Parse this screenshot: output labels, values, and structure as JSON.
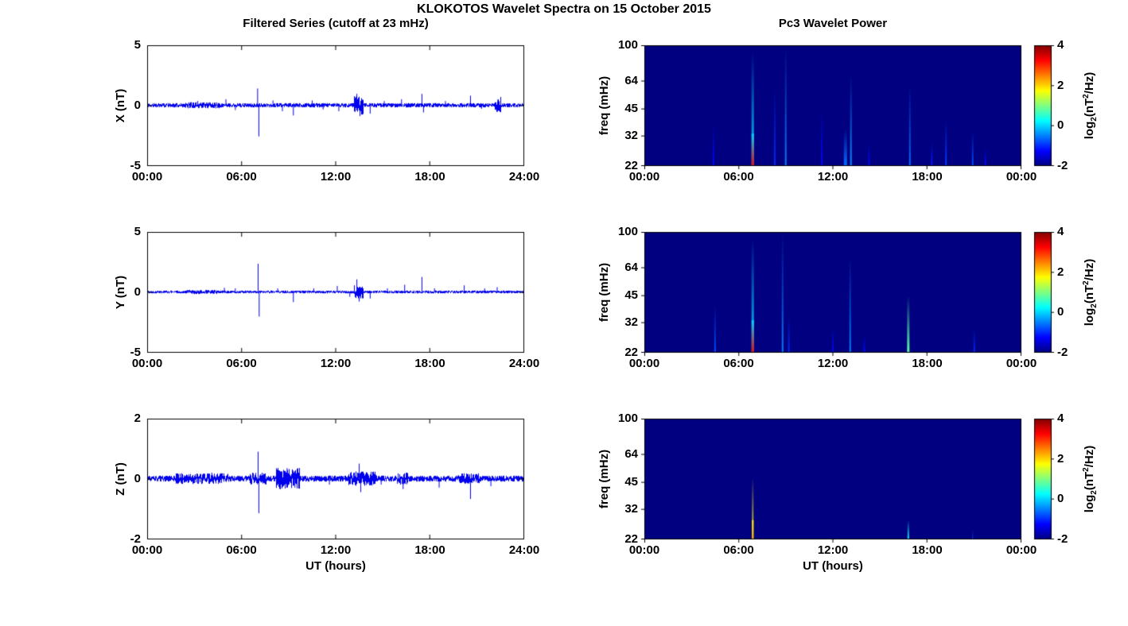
{
  "figure": {
    "title": "KLOKOTOS Wavelet Spectra on 15 October 2015",
    "left_title": "Filtered Series (cutoff at 23 mHz)",
    "right_title": "Pc3 Wavelet Power",
    "xlabel": "UT (hours)",
    "colorbar_label": {
      "prefix": "log",
      "sub": "2",
      "mid": "(nT",
      "sup": "2",
      "suffix": "/Hz)"
    }
  },
  "chart_data": [
    {
      "name": "x-filtered-series",
      "type": "line",
      "ylabel": "X (nT)",
      "ylim": [
        -5,
        5
      ],
      "yticks": [
        5,
        0,
        -5
      ],
      "x_hours": [
        0,
        24
      ],
      "xtick_labels": [
        "00:00",
        "06:00",
        "12:00",
        "18:00",
        "24:00"
      ],
      "line_color": "#0000EE",
      "noise_amp": 0.09,
      "seed": 11,
      "bursts": [
        {
          "t0": 2.4,
          "t1": 4.6,
          "amp": 0.04
        },
        {
          "t0": 13.15,
          "t1": 13.8,
          "amp": 0.3
        },
        {
          "t0": 22.15,
          "t1": 22.55,
          "amp": 0.26
        }
      ],
      "spikes": [
        {
          "t": 3.2,
          "a": 0.35
        },
        {
          "t": 5.0,
          "a": 0.5
        },
        {
          "t": 5.6,
          "a": -0.4
        },
        {
          "t": 7.02,
          "a": 1.4
        },
        {
          "t": 7.1,
          "a": -2.6
        },
        {
          "t": 8.0,
          "a": 0.4
        },
        {
          "t": 8.6,
          "a": -0.5
        },
        {
          "t": 9.3,
          "a": -0.85
        },
        {
          "t": 10.5,
          "a": 0.4
        },
        {
          "t": 11.2,
          "a": -0.35
        },
        {
          "t": 12.2,
          "a": -0.5
        },
        {
          "t": 13.35,
          "a": 0.95
        },
        {
          "t": 13.55,
          "a": -0.9
        },
        {
          "t": 14.2,
          "a": -0.7
        },
        {
          "t": 15.1,
          "a": 0.35
        },
        {
          "t": 16.2,
          "a": 0.5
        },
        {
          "t": 17.5,
          "a": 0.95
        },
        {
          "t": 17.6,
          "a": -0.6
        },
        {
          "t": 19.0,
          "a": 0.35
        },
        {
          "t": 20.6,
          "a": 0.8
        },
        {
          "t": 21.3,
          "a": -0.3
        },
        {
          "t": 22.35,
          "a": 0.5
        }
      ]
    },
    {
      "name": "y-filtered-series",
      "type": "line",
      "ylabel": "Y (nT)",
      "ylim": [
        -5,
        5
      ],
      "yticks": [
        5,
        0,
        -5
      ],
      "x_hours": [
        0,
        24
      ],
      "xtick_labels": [
        "00:00",
        "06:00",
        "12:00",
        "18:00",
        "24:00"
      ],
      "line_color": "#0000EE",
      "noise_amp": 0.06,
      "seed": 22,
      "bursts": [
        {
          "t0": 2.5,
          "t1": 4.5,
          "amp": 0.03
        },
        {
          "t0": 13.15,
          "t1": 13.8,
          "amp": 0.22
        }
      ],
      "spikes": [
        {
          "t": 4.9,
          "a": 0.35
        },
        {
          "t": 5.6,
          "a": 0.3
        },
        {
          "t": 7.05,
          "a": 2.35
        },
        {
          "t": 7.12,
          "a": -2.05
        },
        {
          "t": 8.3,
          "a": 0.3
        },
        {
          "t": 9.3,
          "a": -0.85
        },
        {
          "t": 10.6,
          "a": 0.3
        },
        {
          "t": 12.1,
          "a": 0.5
        },
        {
          "t": 12.9,
          "a": -0.4
        },
        {
          "t": 13.35,
          "a": 1.05
        },
        {
          "t": 13.5,
          "a": -0.8
        },
        {
          "t": 14.2,
          "a": -0.55
        },
        {
          "t": 15.3,
          "a": 0.3
        },
        {
          "t": 16.4,
          "a": 0.6
        },
        {
          "t": 17.5,
          "a": 1.25
        },
        {
          "t": 18.3,
          "a": 0.3
        },
        {
          "t": 20.2,
          "a": 0.55
        },
        {
          "t": 21.5,
          "a": 0.3
        },
        {
          "t": 22.3,
          "a": 0.4
        }
      ]
    },
    {
      "name": "z-filtered-series",
      "type": "line",
      "ylabel": "Z (nT)",
      "ylim": [
        -2,
        2
      ],
      "yticks": [
        2,
        0,
        -2
      ],
      "x_hours": [
        0,
        24
      ],
      "xtick_labels": [
        "00:00",
        "06:00",
        "12:00",
        "18:00",
        "24:00"
      ],
      "line_color": "#0000EE",
      "noise_amp": 0.05,
      "seed": 33,
      "bursts": [
        {
          "t0": 1.8,
          "t1": 5.2,
          "amp": 0.04
        },
        {
          "t0": 6.5,
          "t1": 7.6,
          "amp": 0.05
        },
        {
          "t0": 8.2,
          "t1": 9.7,
          "amp": 0.13
        },
        {
          "t0": 12.8,
          "t1": 14.6,
          "amp": 0.07
        },
        {
          "t0": 15.9,
          "t1": 16.6,
          "amp": 0.05
        },
        {
          "t0": 19.8,
          "t1": 21.2,
          "amp": 0.04
        }
      ],
      "spikes": [
        {
          "t": 2.9,
          "a": -0.18
        },
        {
          "t": 4.1,
          "a": 0.2
        },
        {
          "t": 7.05,
          "a": 0.9
        },
        {
          "t": 7.1,
          "a": -1.15
        },
        {
          "t": 8.9,
          "a": 0.35
        },
        {
          "t": 9.4,
          "a": -0.3
        },
        {
          "t": 11.6,
          "a": -0.2
        },
        {
          "t": 13.5,
          "a": 0.5
        },
        {
          "t": 13.6,
          "a": -0.45
        },
        {
          "t": 14.9,
          "a": -0.2
        },
        {
          "t": 16.3,
          "a": -0.35
        },
        {
          "t": 18.6,
          "a": -0.3
        },
        {
          "t": 20.6,
          "a": -0.68
        },
        {
          "t": 21.9,
          "a": -0.25
        }
      ]
    },
    {
      "name": "x-pc3-wavelet-power",
      "type": "heatmap",
      "ylabel": "freq (mHz)",
      "freq_range": [
        22,
        100
      ],
      "freq_scale": "log",
      "freq_ticks": [
        100,
        64,
        45,
        32,
        22
      ],
      "xtick_labels": [
        "00:00",
        "06:00",
        "12:00",
        "18:00",
        "00:00"
      ],
      "background_value": -2,
      "colorbar": {
        "range": [
          -2,
          4
        ],
        "ticks": [
          4,
          2,
          0,
          -2
        ],
        "colormap": "jet"
      },
      "streaks": [
        {
          "t": 4.4,
          "f0": 22,
          "f1": 38,
          "v": -1.2,
          "w": 2
        },
        {
          "t": 6.9,
          "f0": 22,
          "f1": 92,
          "v": 0.0,
          "w": 3,
          "core": {
            "f0": 22,
            "f1": 33,
            "v": 3.3
          }
        },
        {
          "t": 8.3,
          "f0": 22,
          "f1": 60,
          "v": -1.0,
          "w": 2
        },
        {
          "t": 9.0,
          "f0": 22,
          "f1": 100,
          "v": -0.5,
          "w": 2
        },
        {
          "t": 11.3,
          "f0": 22,
          "f1": 45,
          "v": -1.2,
          "w": 2
        },
        {
          "t": 12.8,
          "f0": 22,
          "f1": 35,
          "v": -0.6,
          "w": 4
        },
        {
          "t": 13.15,
          "f0": 22,
          "f1": 70,
          "v": -0.4,
          "w": 2
        },
        {
          "t": 14.3,
          "f0": 22,
          "f1": 30,
          "v": -1.2,
          "w": 2
        },
        {
          "t": 16.9,
          "f0": 22,
          "f1": 62,
          "v": -0.6,
          "w": 2
        },
        {
          "t": 18.3,
          "f0": 22,
          "f1": 30,
          "v": -1.1,
          "w": 2
        },
        {
          "t": 19.2,
          "f0": 22,
          "f1": 40,
          "v": -0.9,
          "w": 2
        },
        {
          "t": 20.9,
          "f0": 22,
          "f1": 34,
          "v": -0.8,
          "w": 2
        },
        {
          "t": 21.7,
          "f0": 22,
          "f1": 28,
          "v": -1.2,
          "w": 2
        }
      ]
    },
    {
      "name": "y-pc3-wavelet-power",
      "type": "heatmap",
      "ylabel": "freq (mHz)",
      "freq_range": [
        22,
        100
      ],
      "freq_scale": "log",
      "freq_ticks": [
        100,
        64,
        45,
        32,
        22
      ],
      "xtick_labels": [
        "00:00",
        "06:00",
        "12:00",
        "18:00",
        "00:00"
      ],
      "background_value": -2,
      "colorbar": {
        "range": [
          -2,
          4
        ],
        "ticks": [
          4,
          2,
          0,
          -2
        ],
        "colormap": "jet"
      },
      "streaks": [
        {
          "t": 4.5,
          "f0": 22,
          "f1": 40,
          "v": -0.8,
          "w": 2
        },
        {
          "t": 6.9,
          "f0": 22,
          "f1": 92,
          "v": 0.0,
          "w": 3,
          "core": {
            "f0": 22,
            "f1": 33,
            "v": 3.3
          }
        },
        {
          "t": 8.8,
          "f0": 22,
          "f1": 100,
          "v": -0.5,
          "w": 2
        },
        {
          "t": 9.2,
          "f0": 22,
          "f1": 35,
          "v": -1.0,
          "w": 2
        },
        {
          "t": 12.0,
          "f0": 22,
          "f1": 30,
          "v": -1.2,
          "w": 2
        },
        {
          "t": 13.1,
          "f0": 22,
          "f1": 75,
          "v": -0.5,
          "w": 2
        },
        {
          "t": 14.0,
          "f0": 22,
          "f1": 28,
          "v": -1.2,
          "w": 2
        },
        {
          "t": 16.8,
          "f0": 22,
          "f1": 45,
          "v": 0.8,
          "w": 3
        },
        {
          "t": 21.0,
          "f0": 22,
          "f1": 30,
          "v": -1.0,
          "w": 2
        }
      ]
    },
    {
      "name": "z-pc3-wavelet-power",
      "type": "heatmap",
      "ylabel": "freq (mHz)",
      "freq_range": [
        22,
        100
      ],
      "freq_scale": "log",
      "freq_ticks": [
        100,
        64,
        45,
        32,
        22
      ],
      "xtick_labels": [
        "00:00",
        "06:00",
        "12:00",
        "18:00",
        "00:00"
      ],
      "background_value": -2,
      "colorbar": {
        "range": [
          -2,
          4
        ],
        "ticks": [
          4,
          2,
          0,
          -2
        ],
        "colormap": "jet"
      },
      "streaks": [
        {
          "t": 6.9,
          "f0": 22,
          "f1": 48,
          "v": 1.8,
          "w": 2,
          "core": {
            "f0": 22,
            "f1": 28,
            "v": 2.3
          }
        },
        {
          "t": 16.8,
          "f0": 22,
          "f1": 28,
          "v": 0.3,
          "w": 2
        },
        {
          "t": 20.9,
          "f0": 22,
          "f1": 25,
          "v": -0.8,
          "w": 1
        }
      ]
    }
  ]
}
